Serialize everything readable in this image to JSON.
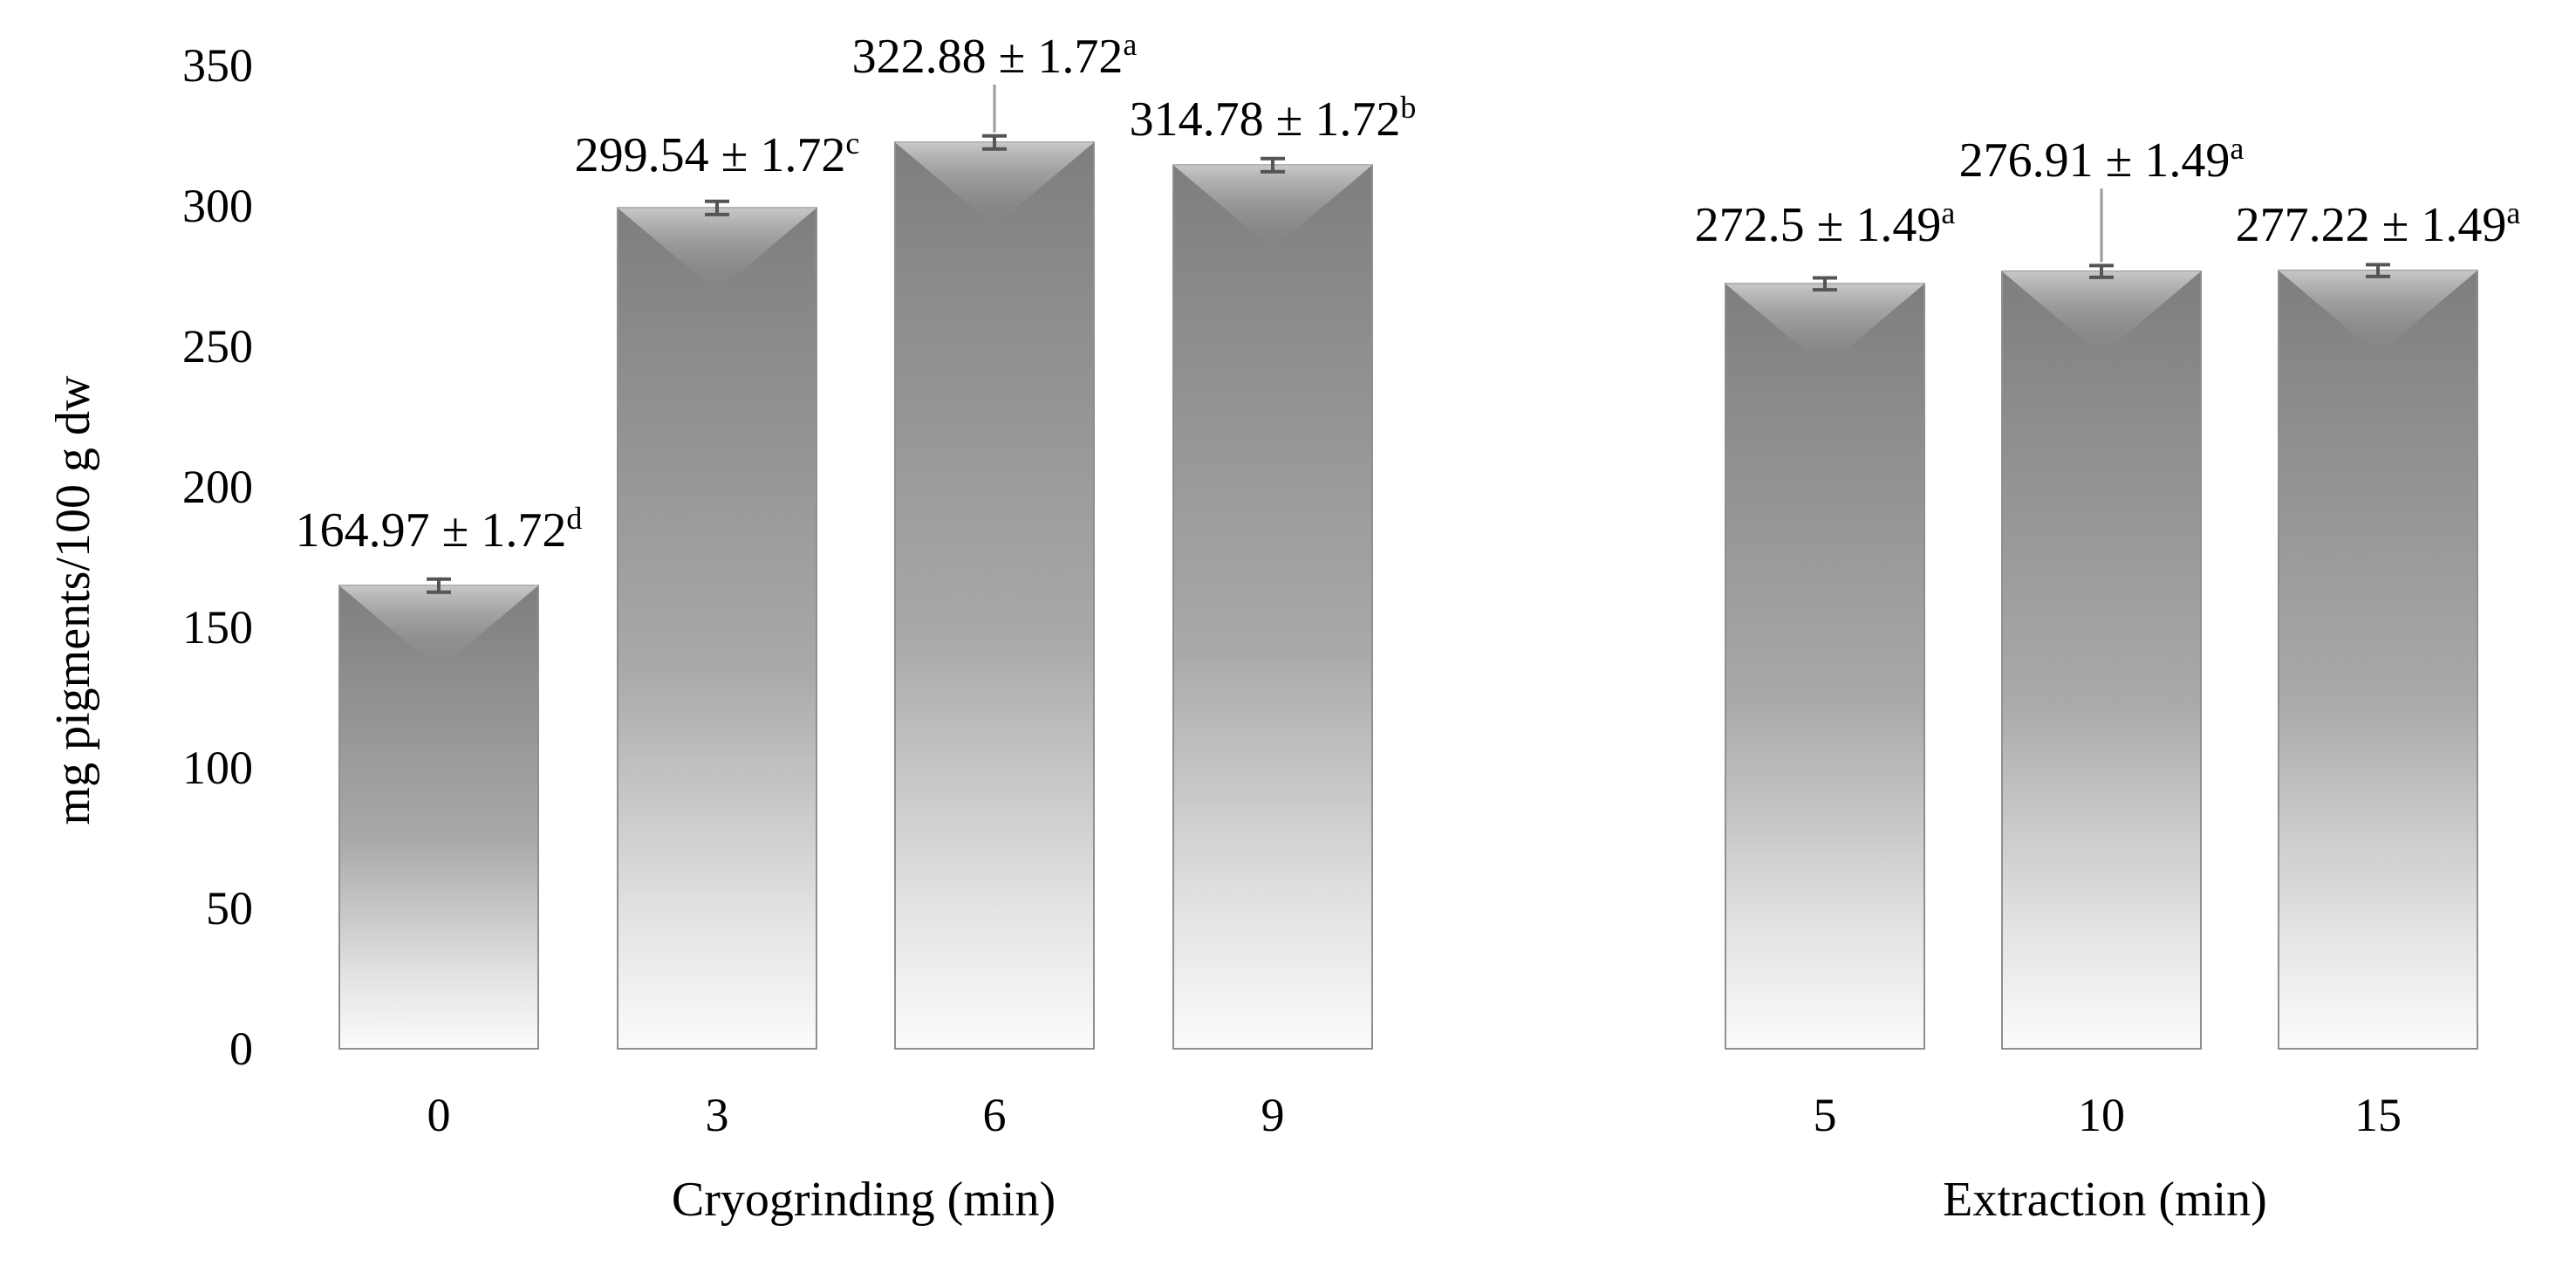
{
  "chart_data": [
    {
      "type": "bar",
      "group": "cryogrinding",
      "xlabel": "Cryogrinding (min)",
      "ylabel": "mg pigments/100 g dw",
      "ylim": [
        0,
        350
      ],
      "yticks": [
        "0",
        "50",
        "100",
        "150",
        "200",
        "250",
        "300",
        "350"
      ],
      "categories": [
        "0",
        "3",
        "6",
        "9"
      ],
      "values": [
        164.97,
        299.54,
        322.88,
        314.78
      ],
      "errors": [
        1.72,
        1.72,
        1.72,
        1.72
      ],
      "labels": [
        "164.97 ± 1.72",
        "299.54 ± 1.72",
        "322.88 ± 1.72",
        "314.78 ± 1.72"
      ],
      "letters": [
        "d",
        "c",
        "a",
        "b"
      ]
    },
    {
      "type": "bar",
      "group": "extraction",
      "xlabel": "Extraction (min)",
      "ylabel": "",
      "ylim": [
        0,
        350
      ],
      "categories": [
        "5",
        "10",
        "15"
      ],
      "values": [
        272.5,
        276.91,
        277.22
      ],
      "errors": [
        1.49,
        1.49,
        1.49
      ],
      "labels": [
        "272.5 ± 1.49",
        "276.91 ± 1.49",
        "277.22 ± 1.49"
      ],
      "letters": [
        "a",
        "a",
        "a"
      ]
    }
  ],
  "colors": {
    "bar_dark": "#7a7a7a",
    "bar_light": "#fafafa",
    "bar_edge": "#8f8f8f",
    "error_bar": "#555555",
    "leader_line": "#9a9a9a"
  }
}
